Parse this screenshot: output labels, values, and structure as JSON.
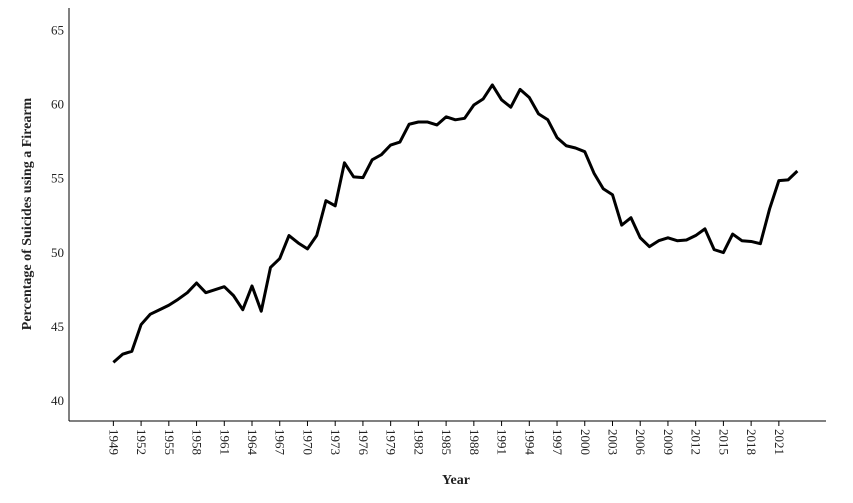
{
  "chart_data": {
    "type": "line",
    "x_label": "Year",
    "y_label": "Percentage of Suicides using a Firearm",
    "x": [
      1949,
      1950,
      1951,
      1952,
      1953,
      1954,
      1955,
      1956,
      1957,
      1958,
      1959,
      1960,
      1961,
      1962,
      1963,
      1964,
      1965,
      1966,
      1967,
      1968,
      1969,
      1970,
      1971,
      1972,
      1973,
      1974,
      1975,
      1976,
      1977,
      1978,
      1979,
      1980,
      1981,
      1982,
      1983,
      1984,
      1985,
      1986,
      1987,
      1988,
      1989,
      1990,
      1991,
      1992,
      1993,
      1994,
      1995,
      1996,
      1997,
      1998,
      1999,
      2000,
      2001,
      2002,
      2003,
      2004,
      2005,
      2006,
      2007,
      2008,
      2009,
      2010,
      2011,
      2012,
      2013,
      2014,
      2015,
      2016,
      2017,
      2018,
      2019,
      2020,
      2021,
      2022,
      2023
    ],
    "values": [
      42.55,
      43.1,
      43.3,
      45.1,
      45.8,
      46.1,
      46.4,
      46.8,
      47.25,
      47.9,
      47.25,
      47.45,
      47.65,
      47.05,
      46.1,
      47.7,
      46.0,
      48.95,
      49.55,
      51.1,
      50.6,
      50.2,
      51.1,
      53.45,
      53.1,
      56.0,
      55.05,
      55.0,
      56.2,
      56.55,
      57.2,
      57.4,
      58.6,
      58.75,
      58.75,
      58.55,
      59.1,
      58.9,
      59.0,
      59.9,
      60.3,
      61.25,
      60.25,
      59.75,
      60.95,
      60.4,
      59.3,
      58.9,
      57.7,
      57.15,
      57.0,
      56.75,
      55.3,
      54.25,
      53.85,
      51.8,
      52.3,
      50.95,
      50.35,
      50.75,
      50.95,
      50.75,
      50.8,
      51.1,
      51.55,
      50.15,
      49.95,
      51.2,
      50.75,
      50.7,
      50.55,
      52.9,
      54.8,
      54.85,
      55.45
    ],
    "color": "#000000",
    "xlim": [
      1944.2,
      2026.1
    ],
    "xticks": [
      1949,
      1952,
      1955,
      1958,
      1961,
      1964,
      1967,
      1970,
      1973,
      1976,
      1979,
      1982,
      1985,
      1988,
      1991,
      1994,
      1997,
      2000,
      2003,
      2006,
      2009,
      2012,
      2015,
      2018,
      2021
    ],
    "ylim": [
      38.6,
      66.3
    ],
    "yticks": [
      40,
      45,
      50,
      55,
      60,
      65
    ],
    "grid": false
  }
}
